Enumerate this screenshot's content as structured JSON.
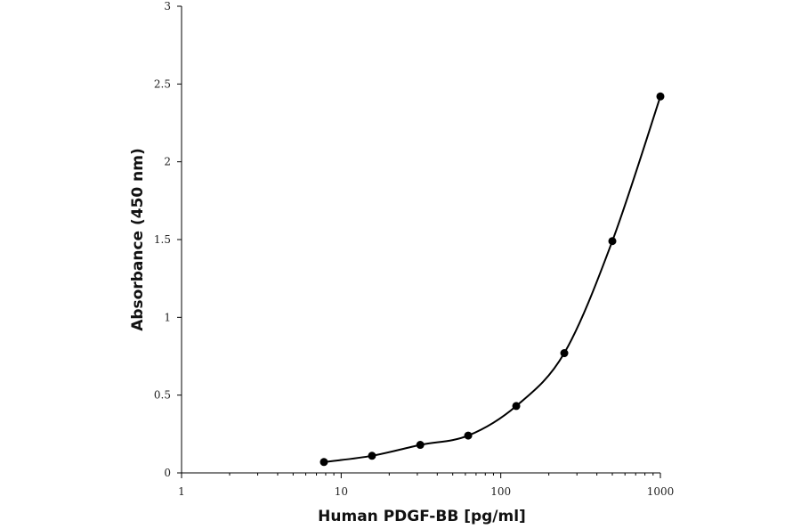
{
  "chart_data": {
    "type": "scatter",
    "title": "",
    "xlabel": "Human PDGF-BB [pg/ml]",
    "ylabel": "Absorbance (450 nm)",
    "xscale": "log",
    "xlim": [
      1,
      1000
    ],
    "ylim": [
      0,
      3
    ],
    "x_ticks": [
      1,
      10,
      100,
      1000
    ],
    "x_tick_labels": [
      "1",
      "10",
      "100",
      "1000"
    ],
    "y_ticks": [
      0,
      0.5,
      1,
      1.5,
      2,
      2.5,
      3
    ],
    "y_tick_labels": [
      "0",
      "0.5",
      "1",
      "1.5",
      "2",
      "2.5",
      "3"
    ],
    "grid": false,
    "legend": "none",
    "series": [
      {
        "style": "markers with smooth line",
        "color": "#000000",
        "x": [
          7.8,
          15.6,
          31.3,
          62.5,
          125,
          250,
          500,
          1000
        ],
        "y": [
          0.07,
          0.11,
          0.18,
          0.24,
          0.43,
          0.77,
          1.49,
          2.42
        ]
      }
    ]
  }
}
